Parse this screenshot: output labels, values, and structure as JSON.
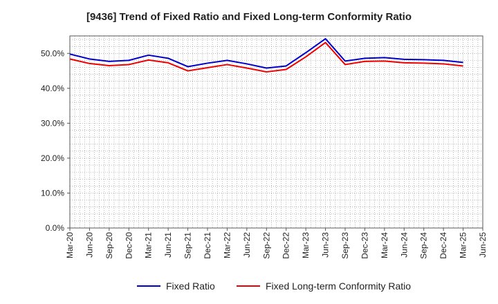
{
  "chart_data": {
    "type": "line",
    "title": "[9436]  Trend of Fixed Ratio and Fixed Long-term Conformity Ratio",
    "xlabel": "",
    "ylabel": "",
    "ylim": [
      0,
      55
    ],
    "y_ticks": [
      "0.0%",
      "10.0%",
      "20.0%",
      "30.0%",
      "40.0%",
      "50.0%"
    ],
    "y_tick_values": [
      0,
      10,
      20,
      30,
      40,
      50
    ],
    "grid": true,
    "legend_position": "bottom",
    "x_tick_labels": [
      "Mar-20",
      "Jun-20",
      "Sep-20",
      "Dec-20",
      "Mar-21",
      "Jun-21",
      "Sep-21",
      "Dec-21",
      "Mar-22",
      "Jun-22",
      "Sep-22",
      "Dec-22",
      "Mar-23",
      "Jun-23",
      "Sep-23",
      "Dec-23",
      "Mar-24",
      "Jun-24",
      "Sep-24",
      "Dec-24",
      "Mar-25",
      "Jun-25"
    ],
    "x": [
      "Mar-20",
      "Jun-20",
      "Sep-20",
      "Dec-20",
      "Mar-21",
      "Jun-21",
      "Sep-21",
      "Dec-21",
      "Mar-22",
      "Jun-22",
      "Sep-22",
      "Dec-22",
      "Mar-23",
      "Jun-23",
      "Sep-23",
      "Dec-23",
      "Mar-24",
      "Jun-24",
      "Sep-24",
      "Dec-24",
      "Mar-25"
    ],
    "series": [
      {
        "name": "Fixed Ratio",
        "color": "#0000cc",
        "values": [
          49.8,
          48.4,
          47.7,
          48.0,
          49.5,
          48.6,
          46.2,
          47.2,
          48.0,
          47.0,
          45.8,
          46.4,
          50.2,
          54.2,
          47.8,
          48.6,
          48.8,
          48.3,
          48.2,
          48.0,
          47.4
        ]
      },
      {
        "name": "Fixed Long-term Conformity Ratio",
        "color": "#ee0000",
        "values": [
          48.4,
          47.1,
          46.5,
          46.8,
          48.1,
          47.3,
          45.0,
          45.9,
          46.8,
          45.8,
          44.7,
          45.4,
          49.0,
          53.1,
          46.8,
          47.7,
          47.8,
          47.3,
          47.2,
          47.0,
          46.4
        ]
      }
    ]
  }
}
